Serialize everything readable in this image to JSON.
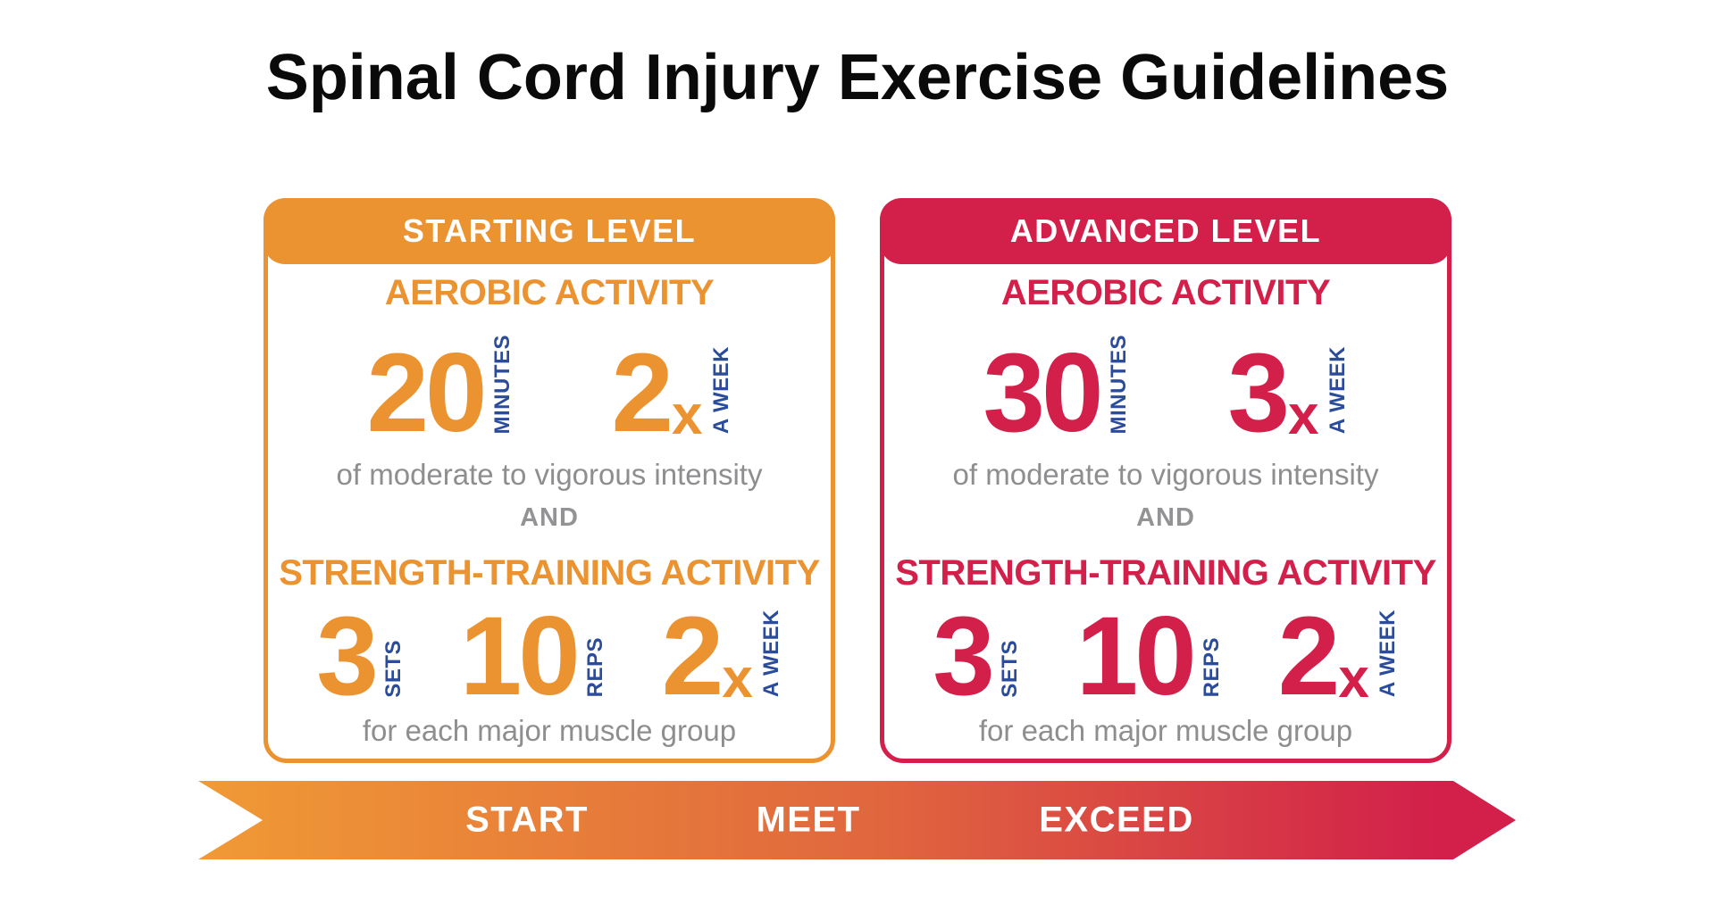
{
  "page": {
    "title": "Spinal Cord Injury Exercise Guidelines"
  },
  "colors": {
    "orange": "#EC9331",
    "crimson": "#D2204A",
    "blue": "#2B4C9B",
    "gray": "#8E8E90",
    "arrowmid": "#E0663E"
  },
  "cards": [
    {
      "level_label": "STARTING LEVEL",
      "aerobic": {
        "heading": "AEROBIC ACTIVITY",
        "duration_value": "20",
        "duration_unit": "MINUTES",
        "frequency_value": "2",
        "frequency_suffix": "x",
        "frequency_unit": "A WEEK",
        "note": "of moderate to vigorous intensity"
      },
      "connector": "AND",
      "strength": {
        "heading": "STRENGTH-TRAINING ACTIVITY",
        "sets_value": "3",
        "sets_unit": "SETS",
        "reps_value": "10",
        "reps_unit": "REPS",
        "frequency_value": "2",
        "frequency_suffix": "x",
        "frequency_unit": "A WEEK",
        "note": "for each major muscle group"
      }
    },
    {
      "level_label": "ADVANCED LEVEL",
      "aerobic": {
        "heading": "AEROBIC ACTIVITY",
        "duration_value": "30",
        "duration_unit": "MINUTES",
        "frequency_value": "3",
        "frequency_suffix": "x",
        "frequency_unit": "A WEEK",
        "note": "of moderate to vigorous intensity"
      },
      "connector": "AND",
      "strength": {
        "heading": "STRENGTH-TRAINING ACTIVITY",
        "sets_value": "3",
        "sets_unit": "SETS",
        "reps_value": "10",
        "reps_unit": "REPS",
        "frequency_value": "2",
        "frequency_suffix": "x",
        "frequency_unit": "A WEEK",
        "note": "for each major muscle group"
      }
    }
  ],
  "progress_arrow": {
    "labels": [
      "START",
      "MEET",
      "EXCEED"
    ]
  }
}
